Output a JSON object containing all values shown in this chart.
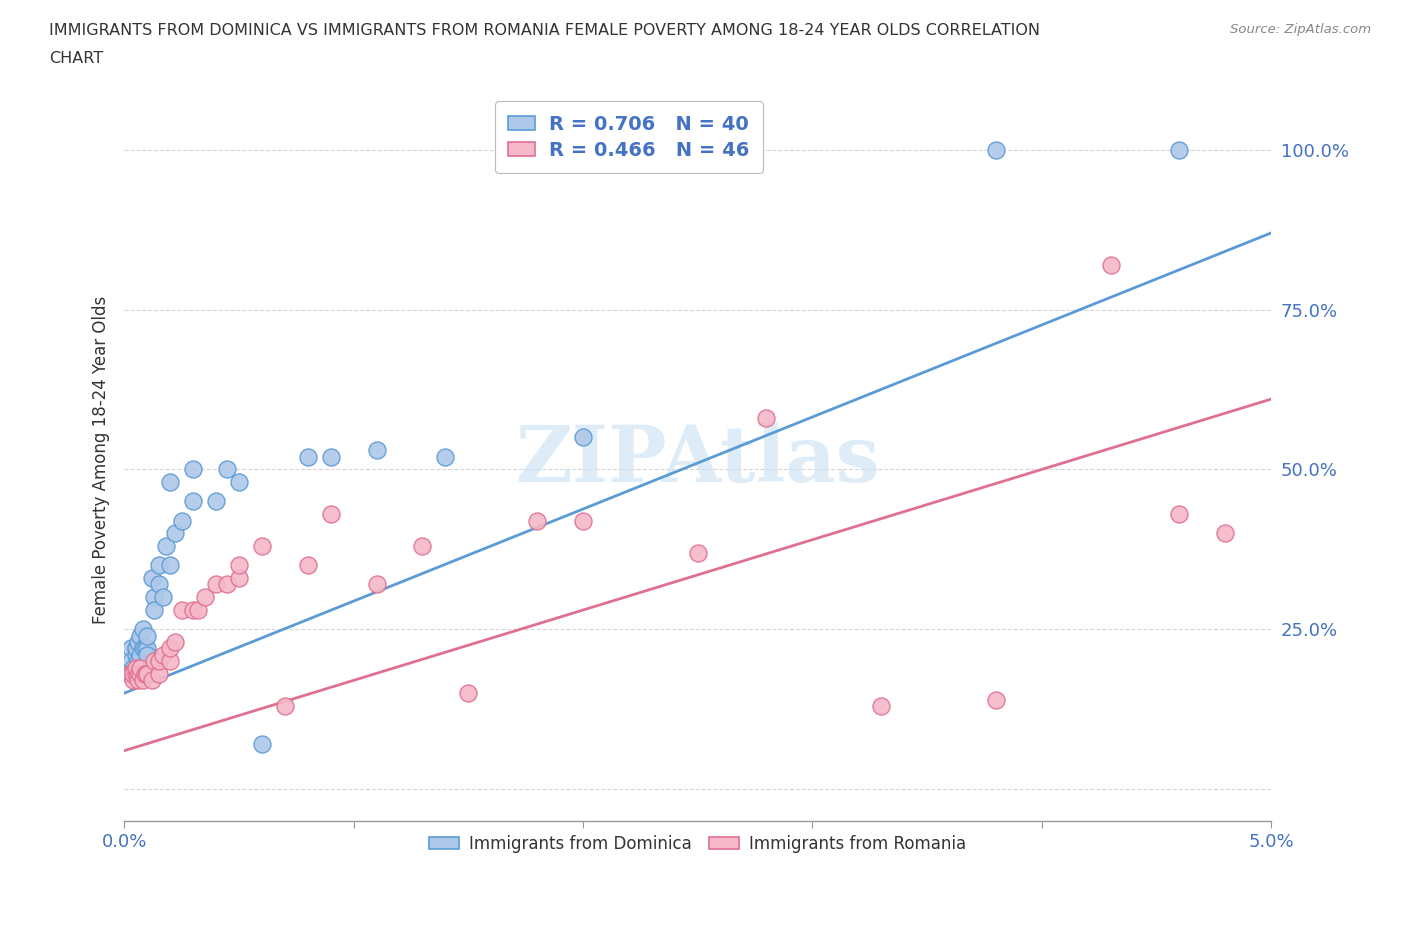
{
  "title_line1": "IMMIGRANTS FROM DOMINICA VS IMMIGRANTS FROM ROMANIA FEMALE POVERTY AMONG 18-24 YEAR OLDS CORRELATION",
  "title_line2": "CHART",
  "source_text": "Source: ZipAtlas.com",
  "ylabel": "Female Poverty Among 18-24 Year Olds",
  "xlim": [
    0.0,
    0.05
  ],
  "ylim": [
    -0.05,
    1.08
  ],
  "xticks": [
    0.0,
    0.01,
    0.02,
    0.03,
    0.04,
    0.05
  ],
  "xticklabels": [
    "0.0%",
    "",
    "",
    "",
    "",
    "5.0%"
  ],
  "yticks": [
    0.0,
    0.25,
    0.5,
    0.75,
    1.0
  ],
  "yticklabels": [
    "",
    "25.0%",
    "50.0%",
    "75.0%",
    "100.0%"
  ],
  "dominica_color": "#adc8e8",
  "dominica_edge_color": "#5b9bd5",
  "romania_color": "#f4b8c8",
  "romania_edge_color": "#e07090",
  "dominica_line_color": "#5b9bd5",
  "romania_line_color": "#e07090",
  "dominica_R": 0.706,
  "dominica_N": 40,
  "romania_R": 0.466,
  "romania_N": 46,
  "legend_text_color": "#4472c4",
  "watermark_color": "#d0e4f5",
  "dominica_x": [
    0.0003,
    0.0003,
    0.0004,
    0.0005,
    0.0005,
    0.0005,
    0.0006,
    0.0006,
    0.0007,
    0.0007,
    0.0008,
    0.0008,
    0.0009,
    0.001,
    0.001,
    0.001,
    0.0012,
    0.0013,
    0.0013,
    0.0015,
    0.0015,
    0.0017,
    0.0018,
    0.002,
    0.002,
    0.0022,
    0.0025,
    0.003,
    0.003,
    0.004,
    0.0045,
    0.005,
    0.006,
    0.008,
    0.009,
    0.011,
    0.014,
    0.02,
    0.038,
    0.046
  ],
  "dominica_y": [
    0.22,
    0.2,
    0.19,
    0.22,
    0.21,
    0.22,
    0.23,
    0.2,
    0.21,
    0.24,
    0.22,
    0.25,
    0.22,
    0.22,
    0.24,
    0.21,
    0.33,
    0.3,
    0.28,
    0.32,
    0.35,
    0.3,
    0.38,
    0.35,
    0.48,
    0.4,
    0.42,
    0.45,
    0.5,
    0.45,
    0.5,
    0.48,
    0.07,
    0.52,
    0.52,
    0.53,
    0.52,
    0.55,
    1.0,
    1.0
  ],
  "romania_x": [
    0.0002,
    0.0003,
    0.0004,
    0.0004,
    0.0005,
    0.0005,
    0.0006,
    0.0006,
    0.0007,
    0.0007,
    0.0008,
    0.0009,
    0.001,
    0.001,
    0.0012,
    0.0013,
    0.0015,
    0.0015,
    0.0017,
    0.002,
    0.002,
    0.0022,
    0.0025,
    0.003,
    0.0032,
    0.0035,
    0.004,
    0.0045,
    0.005,
    0.005,
    0.006,
    0.007,
    0.008,
    0.009,
    0.011,
    0.013,
    0.015,
    0.018,
    0.02,
    0.025,
    0.028,
    0.033,
    0.038,
    0.043,
    0.046,
    0.048
  ],
  "romania_y": [
    0.18,
    0.18,
    0.17,
    0.18,
    0.18,
    0.19,
    0.18,
    0.17,
    0.18,
    0.19,
    0.17,
    0.18,
    0.18,
    0.18,
    0.17,
    0.2,
    0.18,
    0.2,
    0.21,
    0.2,
    0.22,
    0.23,
    0.28,
    0.28,
    0.28,
    0.3,
    0.32,
    0.32,
    0.33,
    0.35,
    0.38,
    0.13,
    0.35,
    0.43,
    0.32,
    0.38,
    0.15,
    0.42,
    0.42,
    0.37,
    0.58,
    0.13,
    0.14,
    0.82,
    0.43,
    0.4
  ],
  "dom_trend_x0": 0.0,
  "dom_trend_y0": 0.15,
  "dom_trend_x1": 0.05,
  "dom_trend_y1": 0.87,
  "rom_trend_x0": 0.0,
  "rom_trend_y0": 0.06,
  "rom_trend_x1": 0.05,
  "rom_trend_y1": 0.61
}
